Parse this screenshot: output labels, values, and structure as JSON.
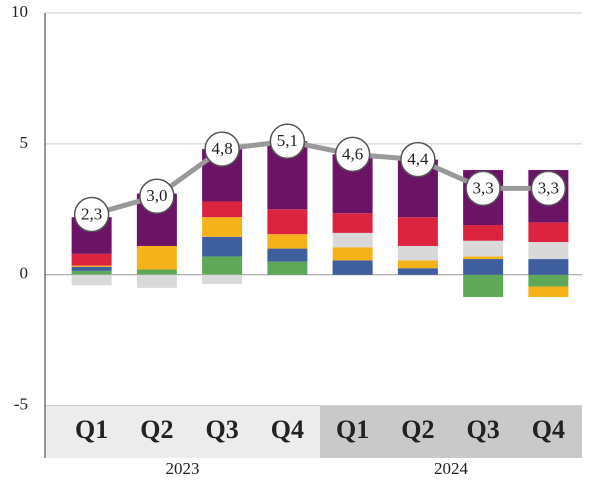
{
  "chart_data": {
    "type": "bar",
    "stacked": true,
    "categories": [
      "Q1",
      "Q2",
      "Q3",
      "Q4",
      "Q1",
      "Q2",
      "Q3",
      "Q4"
    ],
    "category_colors": [
      "#c8102e",
      "#3e5e9e",
      "#f5b21a",
      "#5fa85a",
      "#c8102e",
      "#3e5e9e",
      "#f5b21a",
      "#5fa85a"
    ],
    "groups": [
      {
        "label": "2023",
        "span": 4,
        "color": "#ececec"
      },
      {
        "label": "2024",
        "span": 4,
        "color": "#c9c9c9"
      }
    ],
    "series": [
      {
        "color": "#5fa85a",
        "values": [
          0.15,
          0.2,
          0.7,
          0.5,
          0,
          0,
          -0.85,
          -0.45
        ]
      },
      {
        "color": "#3e5e9e",
        "values": [
          0.15,
          0,
          0.75,
          0.5,
          0.55,
          0.25,
          0.6,
          0.6
        ]
      },
      {
        "color": "#f5b21a",
        "values": [
          0.05,
          0.9,
          0.75,
          0.55,
          0.5,
          0.3,
          0.1,
          -0.4
        ]
      },
      {
        "color": "#d9d9d9",
        "values": [
          -0.4,
          -0.5,
          -0.35,
          0,
          0.55,
          0.55,
          0.6,
          0.65
        ]
      },
      {
        "color": "#dc2440",
        "values": [
          0.45,
          0,
          0.6,
          0.95,
          0.75,
          1.1,
          0.6,
          0.75
        ]
      },
      {
        "color": "#6b1466",
        "values": [
          1.4,
          2.0,
          2.0,
          2.6,
          2.25,
          2.2,
          2.1,
          2.0
        ]
      }
    ],
    "line": {
      "type": "line",
      "color": "#999999",
      "values": [
        2.3,
        3.0,
        4.8,
        5.1,
        4.6,
        4.4,
        3.3,
        3.3
      ],
      "value_labels": [
        "2,3",
        "3,0",
        "4,8",
        "5,1",
        "4,6",
        "4,4",
        "3,3",
        "3,3"
      ]
    },
    "ylim": [
      -7,
      10
    ],
    "yticks": [
      -5,
      0,
      5,
      10
    ],
    "grid": true
  }
}
